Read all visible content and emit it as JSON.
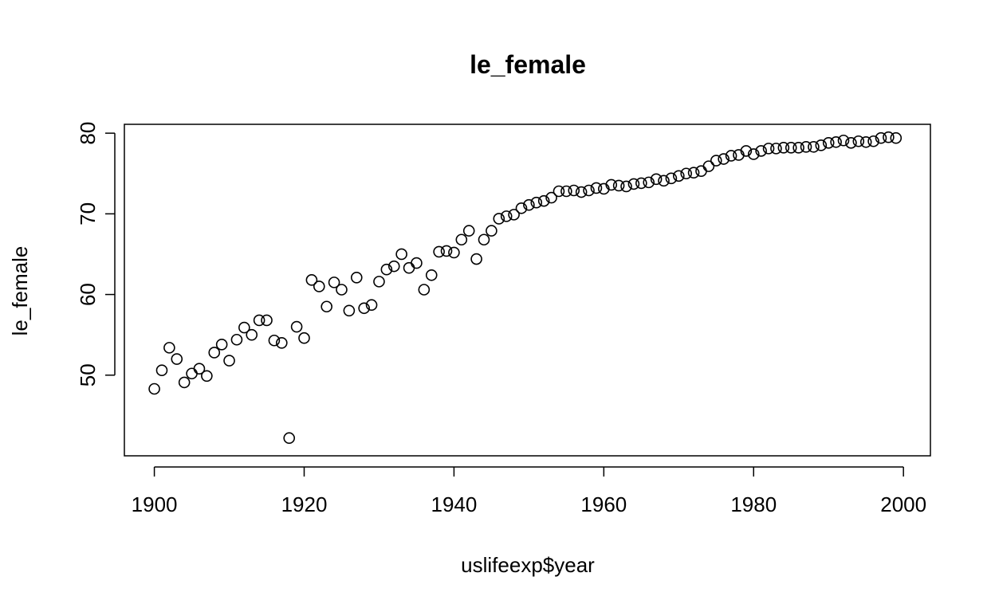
{
  "chart_data": {
    "type": "scatter",
    "title": "le_female",
    "xlabel": "uslifeexp$year",
    "ylabel": "le_female",
    "xlim": [
      1896,
      2003.6
    ],
    "ylim": [
      40,
      81.1
    ],
    "x_ticks": [
      "1900",
      "1920",
      "1940",
      "1960",
      "1980",
      "2000"
    ],
    "y_ticks": [
      "50",
      "60",
      "70",
      "80"
    ],
    "marker": "open-circle",
    "color": "#000000",
    "x": [
      1900,
      1901,
      1902,
      1903,
      1904,
      1905,
      1906,
      1907,
      1908,
      1909,
      1910,
      1911,
      1912,
      1913,
      1914,
      1915,
      1916,
      1917,
      1918,
      1919,
      1920,
      1921,
      1922,
      1923,
      1924,
      1925,
      1926,
      1927,
      1928,
      1929,
      1930,
      1931,
      1932,
      1933,
      1934,
      1935,
      1936,
      1937,
      1938,
      1939,
      1940,
      1941,
      1942,
      1943,
      1944,
      1945,
      1946,
      1947,
      1948,
      1949,
      1950,
      1951,
      1952,
      1953,
      1954,
      1955,
      1956,
      1957,
      1958,
      1959,
      1960,
      1961,
      1962,
      1963,
      1964,
      1965,
      1966,
      1967,
      1968,
      1969,
      1970,
      1971,
      1972,
      1973,
      1974,
      1975,
      1976,
      1977,
      1978,
      1979,
      1980,
      1981,
      1982,
      1983,
      1984,
      1985,
      1986,
      1987,
      1988,
      1989,
      1990,
      1991,
      1992,
      1993,
      1994,
      1995,
      1996,
      1997,
      1998,
      1999
    ],
    "y": [
      48.3,
      50.6,
      53.4,
      52.0,
      49.1,
      50.2,
      50.8,
      49.9,
      52.8,
      53.8,
      51.8,
      54.4,
      55.9,
      55.0,
      56.8,
      56.8,
      54.3,
      54.0,
      42.2,
      56.0,
      54.6,
      61.8,
      61.0,
      58.5,
      61.5,
      60.6,
      58.0,
      62.1,
      58.3,
      58.7,
      61.6,
      63.1,
      63.5,
      65.0,
      63.3,
      63.9,
      60.6,
      62.4,
      65.3,
      65.4,
      65.2,
      66.8,
      67.9,
      64.4,
      66.8,
      67.9,
      69.4,
      69.7,
      69.9,
      70.7,
      71.1,
      71.4,
      71.6,
      72.0,
      72.8,
      72.8,
      72.9,
      72.7,
      72.9,
      73.2,
      73.1,
      73.6,
      73.5,
      73.4,
      73.7,
      73.8,
      73.9,
      74.3,
      74.1,
      74.4,
      74.7,
      75.0,
      75.1,
      75.3,
      75.9,
      76.6,
      76.8,
      77.2,
      77.3,
      77.8,
      77.4,
      77.8,
      78.1,
      78.1,
      78.2,
      78.2,
      78.2,
      78.3,
      78.3,
      78.5,
      78.8,
      78.9,
      79.1,
      78.8,
      79.0,
      78.9,
      79.0,
      79.4,
      79.5,
      79.4
    ]
  }
}
